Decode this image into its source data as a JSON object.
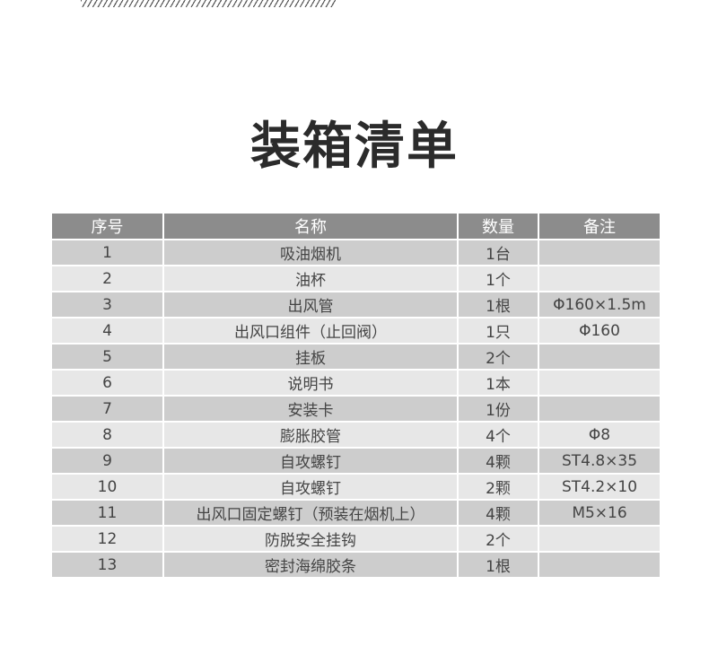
{
  "title": "装箱清单",
  "headers": [
    "序号",
    "名称",
    "数量",
    "备注"
  ],
  "rows": [
    [
      "1",
      "吸油烟机",
      "1台",
      ""
    ],
    [
      "2",
      "油杯",
      "1个",
      ""
    ],
    [
      "3",
      "出风管",
      "1根",
      "Φ160×1.5m"
    ],
    [
      "4",
      "出风口组件（止回阀）",
      "1只",
      "Φ160"
    ],
    [
      "5",
      "挂板",
      "2个",
      ""
    ],
    [
      "6",
      "说明书",
      "1本",
      ""
    ],
    [
      "7",
      "安装卡",
      "1份",
      ""
    ],
    [
      "8",
      "膨胀胶管",
      "4个",
      "Φ8"
    ],
    [
      "9",
      "自攻螺钉",
      "4颗",
      "ST4.8×35"
    ],
    [
      "10",
      "自攻螺钉",
      "2颗",
      "ST4.2×10"
    ],
    [
      "11",
      "出风口固定螺钉（预装在烟机上）",
      "4颗",
      "M5×16"
    ],
    [
      "12",
      "防脱安全挂钩",
      "2个",
      ""
    ],
    [
      "13",
      "密封海绵胶条",
      "1根",
      ""
    ]
  ]
}
